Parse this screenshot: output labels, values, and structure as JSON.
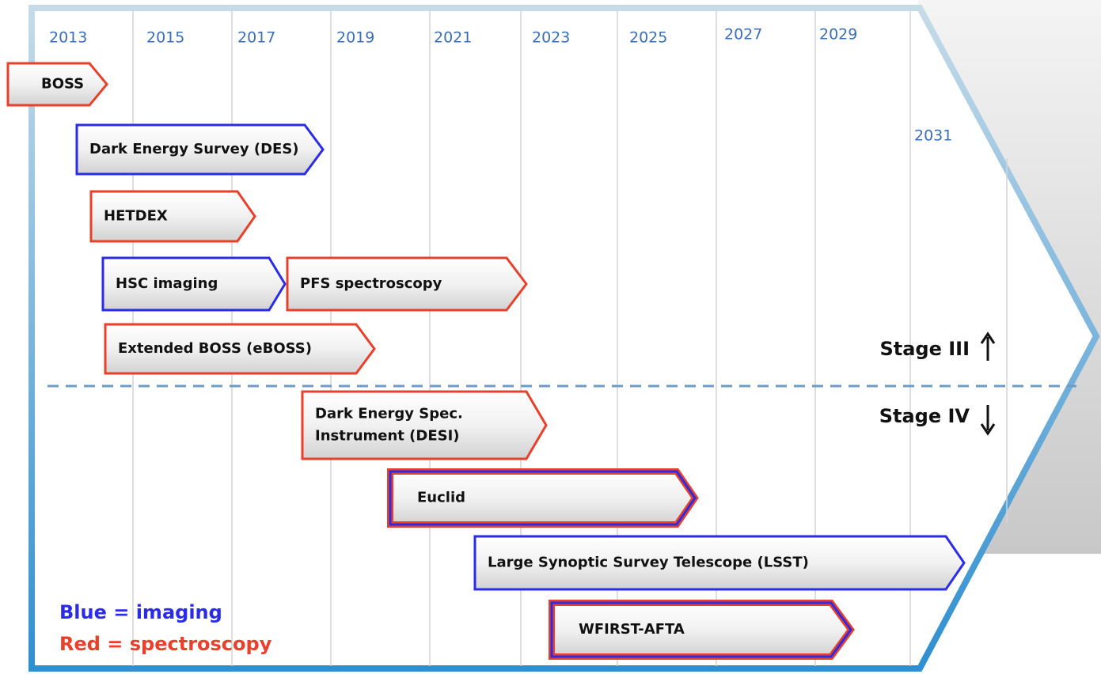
{
  "years": [
    "2013",
    "2015",
    "2017",
    "2019",
    "2021",
    "2023",
    "2025",
    "2027",
    "2029",
    "2031"
  ],
  "projects": [
    {
      "lines": [
        "BOSS"
      ]
    },
    {
      "lines": [
        "Dark Energy Survey (DES)"
      ]
    },
    {
      "lines": [
        "HETDEX"
      ]
    },
    {
      "lines": [
        "HSC imaging"
      ]
    },
    {
      "lines": [
        "PFS spectroscopy"
      ]
    },
    {
      "lines": [
        "Extended BOSS (eBOSS)"
      ]
    },
    {
      "lines": [
        "Dark Energy Spec.",
        "Instrument (DESI)"
      ]
    },
    {
      "lines": [
        "Euclid"
      ]
    },
    {
      "lines": [
        "Large Synoptic Survey Telescope (LSST)"
      ]
    },
    {
      "lines": [
        "WFIRST-AFTA"
      ]
    }
  ],
  "stages": {
    "upper": "Stage III",
    "lower": "Stage IV"
  },
  "legend": {
    "blue": "Blue = imaging",
    "red": "Red = spectroscopy"
  }
}
